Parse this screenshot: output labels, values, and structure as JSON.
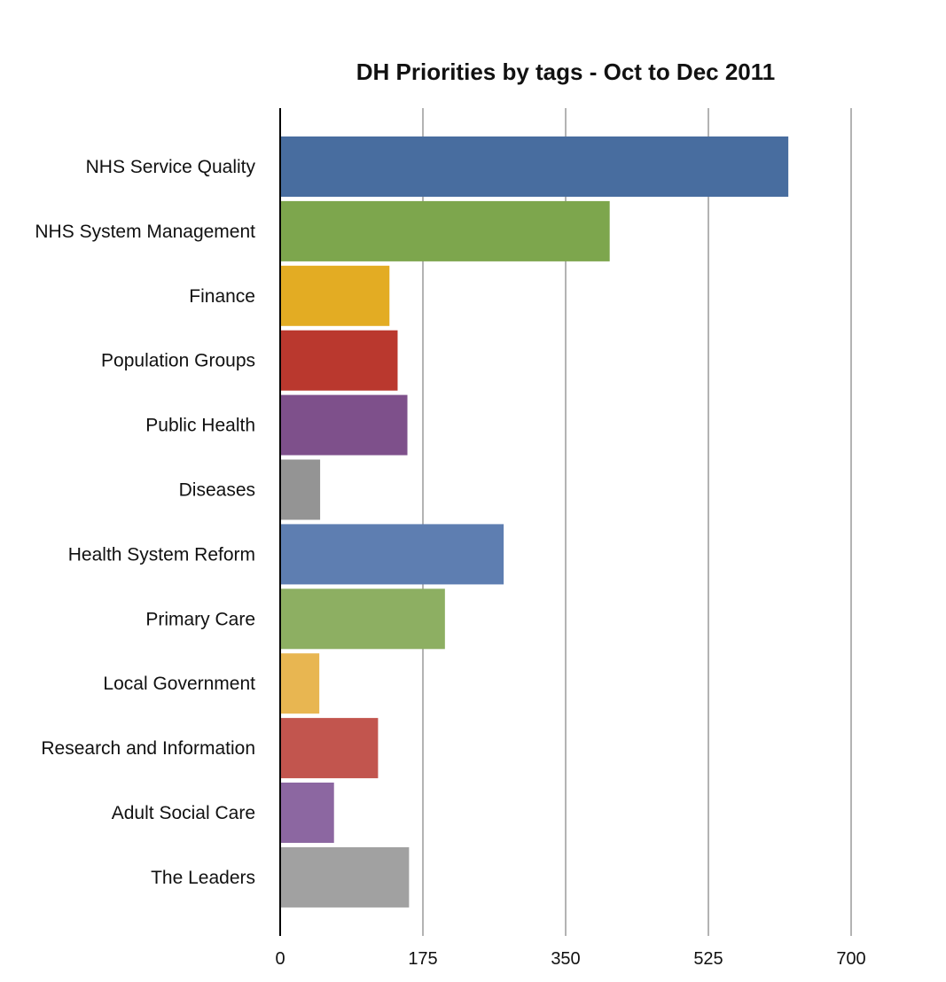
{
  "chart_data": {
    "type": "bar",
    "orientation": "horizontal",
    "title": "DH Priorities by tags - Oct to Dec 2011",
    "xlabel": "",
    "ylabel": "",
    "xlim": [
      0,
      700
    ],
    "ticks": [
      0,
      175,
      350,
      525,
      700
    ],
    "grid": true,
    "legend": "none",
    "categories": [
      "NHS Service Quality",
      "NHS System Management",
      "Finance",
      "Population Groups",
      "Public Health",
      "Diseases",
      "Health System Reform",
      "Primary Care",
      "Local Government",
      "Research and Information",
      "Adult Social Care",
      "The Leaders"
    ],
    "values": [
      623,
      404,
      134,
      144,
      156,
      49,
      274,
      202,
      48,
      120,
      66,
      158
    ],
    "colors": [
      "#486d9f",
      "#7da64d",
      "#e3ac23",
      "#ba382e",
      "#7e508b",
      "#949494",
      "#5e7eb1",
      "#8daf62",
      "#e8b651",
      "#c2554e",
      "#8c67a1",
      "#a1a1a1"
    ]
  }
}
